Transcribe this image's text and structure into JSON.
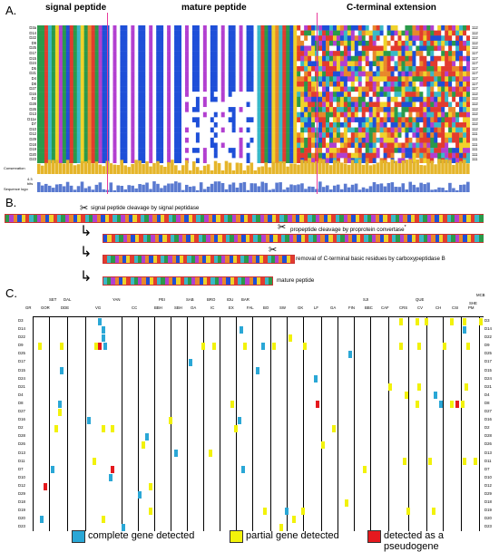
{
  "panels": {
    "a": "A.",
    "b": "B.",
    "c": "C."
  },
  "alignment": {
    "regions": [
      {
        "name": "signal peptide"
      },
      {
        "name": "mature peptide"
      },
      {
        "name": "C-terminal extension"
      }
    ],
    "sequences": [
      "D3a",
      "D14",
      "D22",
      "D9",
      "D25",
      "D17",
      "D15",
      "D24",
      "D5",
      "D21",
      "D4",
      "D8",
      "D27",
      "D16",
      "D2",
      "D28",
      "D26",
      "D13",
      "D11e",
      "D7",
      "D10",
      "D12",
      "D29",
      "D18",
      "D19",
      "D20",
      "D23"
    ],
    "end_positions": [
      "112",
      "112",
      "112",
      "112",
      "112",
      "117",
      "117",
      "117",
      "117",
      "117",
      "117",
      "117",
      "117",
      "112",
      "112",
      "112",
      "112",
      "112",
      "112",
      "112",
      "112",
      "111",
      "111",
      "111",
      "111",
      "111",
      "111"
    ],
    "conservation_label": "Conservation",
    "logo_label_lines": [
      "4.3",
      "bits",
      "Sequence logo"
    ],
    "colors": [
      "#e23b2e",
      "#1e4fd8",
      "#2a9a4a",
      "#f0d22a",
      "#b23fd0",
      "#39b8c8",
      "#e8882a",
      "#ffffff",
      "#8a8a8a"
    ]
  },
  "processing": {
    "steps": [
      {
        "text": "signal peptide cleavage by signal peptidase"
      },
      {
        "text": "propeptide cleavage by proprotein convertase"
      },
      {
        "text": "removal of C-terminal basic residues by carboxypeptidase B"
      },
      {
        "text": "mature peptide"
      }
    ],
    "asterisk": "*"
  },
  "matrix": {
    "group_top": [
      "SET",
      "DAL",
      "YAN",
      "PEI",
      "SAB",
      "BRO",
      "IDU",
      "BAR",
      "SJI",
      "QUE",
      "MCB",
      "SHE"
    ],
    "categories": [
      "GR",
      "GOR",
      "DDE",
      "VG",
      "CC",
      "BBH",
      "SBH",
      "OA",
      "IC",
      "EX",
      "FAL",
      "BO",
      "SW",
      "GK",
      "LF",
      "GA",
      "FIN",
      "BBC",
      "CAF",
      "CRS",
      "CV",
      "CH",
      "CSI",
      "PM"
    ],
    "rows": [
      "D3",
      "D14",
      "D22",
      "D9",
      "D25",
      "D17",
      "D15",
      "D24",
      "D21",
      "D4",
      "D8",
      "D27",
      "D16",
      "D2",
      "D28",
      "D26",
      "D13",
      "D11",
      "D7",
      "D10",
      "D12",
      "D29",
      "D18",
      "D19",
      "D20",
      "D23"
    ],
    "colors": {
      "complete": "#2aa7d6",
      "partial": "#f2f20a",
      "pseudogene": "#e5191e"
    }
  },
  "legend": [
    {
      "label": "complete gene detected"
    },
    {
      "label": "partial gene detected"
    },
    {
      "label": "detected as a pseudogene"
    }
  ]
}
